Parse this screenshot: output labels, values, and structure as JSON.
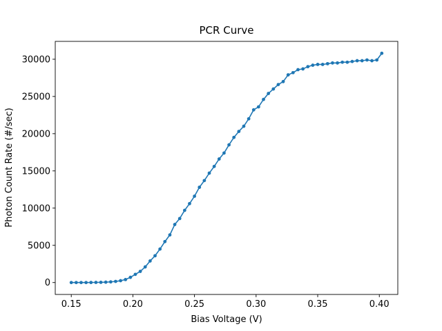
{
  "chart_data": {
    "type": "line",
    "title": "PCR Curve",
    "xlabel": "Bias Voltage (V)",
    "ylabel": "Photon Count Rate (#/sec)",
    "xlim": [
      0.137,
      0.415
    ],
    "ylim": [
      -1600,
      32400
    ],
    "xticks": [
      {
        "value": 0.15,
        "label": "0.15"
      },
      {
        "value": 0.2,
        "label": "0.20"
      },
      {
        "value": 0.25,
        "label": "0.25"
      },
      {
        "value": 0.3,
        "label": "0.30"
      },
      {
        "value": 0.35,
        "label": "0.35"
      },
      {
        "value": 0.4,
        "label": "0.40"
      }
    ],
    "yticks": [
      {
        "value": 0,
        "label": "0"
      },
      {
        "value": 5000,
        "label": "5000"
      },
      {
        "value": 10000,
        "label": "10000"
      },
      {
        "value": 15000,
        "label": "15000"
      },
      {
        "value": 20000,
        "label": "20000"
      },
      {
        "value": 25000,
        "label": "25000"
      },
      {
        "value": 30000,
        "label": "30000"
      }
    ],
    "grid": false,
    "legend": "none",
    "color": "#1f77b4",
    "series": [
      {
        "marker": "circle",
        "x": [
          0.15,
          0.154,
          0.158,
          0.162,
          0.166,
          0.17,
          0.174,
          0.178,
          0.182,
          0.186,
          0.19,
          0.194,
          0.198,
          0.202,
          0.206,
          0.21,
          0.214,
          0.218,
          0.222,
          0.226,
          0.23,
          0.234,
          0.238,
          0.242,
          0.246,
          0.25,
          0.254,
          0.258,
          0.262,
          0.266,
          0.27,
          0.274,
          0.278,
          0.282,
          0.286,
          0.29,
          0.294,
          0.298,
          0.302,
          0.306,
          0.31,
          0.314,
          0.318,
          0.322,
          0.326,
          0.33,
          0.334,
          0.338,
          0.342,
          0.346,
          0.35,
          0.354,
          0.358,
          0.362,
          0.366,
          0.37,
          0.374,
          0.378,
          0.382,
          0.386,
          0.39,
          0.394,
          0.398,
          0.402
        ],
        "y": [
          0,
          0,
          0,
          0,
          10,
          20,
          30,
          50,
          90,
          150,
          250,
          400,
          700,
          1100,
          1500,
          2100,
          2900,
          3600,
          4500,
          5500,
          6400,
          7800,
          8600,
          9700,
          10600,
          11600,
          12800,
          13700,
          14700,
          15600,
          16600,
          17400,
          18500,
          19500,
          20300,
          21000,
          22000,
          23200,
          23600,
          24600,
          25400,
          26000,
          26600,
          27000,
          27900,
          28200,
          28600,
          28700,
          29000,
          29200,
          29300,
          29300,
          29400,
          29500,
          29500,
          29600,
          29600,
          29700,
          29800,
          29800,
          29900,
          29800,
          29900,
          30800
        ]
      }
    ]
  }
}
